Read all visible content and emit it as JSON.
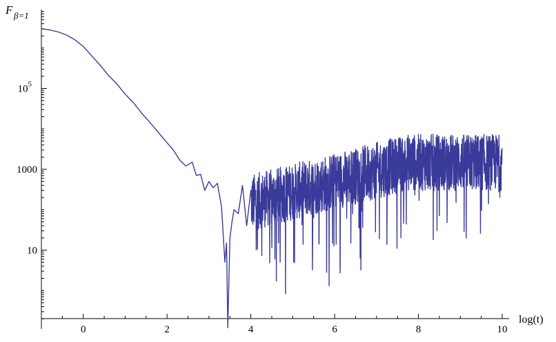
{
  "chart_data": {
    "type": "line",
    "xlabel": "log(t)",
    "ylabel": {
      "main": "F",
      "subscript": "β=1"
    },
    "xlim": [
      -1,
      10
    ],
    "ylim_log10": [
      -0.95,
      6.95
    ],
    "y_scale": "log",
    "x_ticks": [
      0,
      2,
      4,
      6,
      8,
      10
    ],
    "y_ticks": [
      {
        "base": "10",
        "exp": "5",
        "log10": 5
      },
      {
        "base": "1000",
        "exp": "",
        "log10": 3
      },
      {
        "base": "10",
        "exp": "",
        "log10": 1
      }
    ],
    "grid": false,
    "line_color": "#3a3a9a",
    "series": [
      {
        "x": [
          -1.0,
          -0.8,
          -0.6,
          -0.4,
          -0.2,
          0.0,
          0.2,
          0.4,
          0.6,
          0.8,
          1.0,
          1.2,
          1.4,
          1.6,
          1.8,
          2.0,
          2.15,
          2.3,
          2.45,
          2.6,
          2.7,
          2.8,
          2.9,
          3.0,
          3.1,
          3.2,
          3.3,
          3.38,
          3.42,
          3.45,
          3.5,
          3.55,
          3.6,
          3.7,
          3.8,
          3.9,
          4.0
        ],
        "y": [
          3000000,
          2800000,
          2500000,
          2100000,
          1600000,
          1100000,
          640000,
          380000,
          210000,
          130000,
          72000,
          44000,
          24000,
          14000,
          8000,
          4500,
          3000,
          1700,
          1200,
          1500,
          700,
          750,
          300,
          500,
          350,
          450,
          120,
          5,
          15,
          0.12,
          20,
          50,
          100,
          80,
          400,
          40,
          300
        ]
      }
    ],
    "noise_region": {
      "x_start": 4.0,
      "x_end": 10.0,
      "log10_center_start": 2.1,
      "log10_center_end": 3.1,
      "log10_spread": 0.7
    }
  }
}
